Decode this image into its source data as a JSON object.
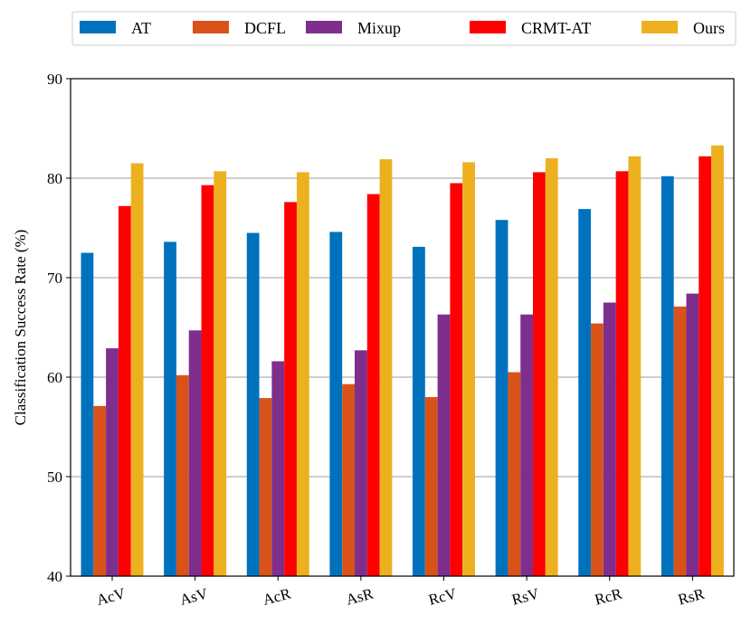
{
  "chart_data": {
    "type": "bar",
    "title": "",
    "xlabel": "",
    "ylabel": "Classification Success Rate (%)",
    "ylim": [
      40,
      90
    ],
    "yticks": [
      40,
      50,
      60,
      70,
      80,
      90
    ],
    "grid": "y",
    "legend": "top",
    "categories": [
      "AcV",
      "AsV",
      "AcR",
      "AsR",
      "RcV",
      "RsV",
      "RcR",
      "RsR"
    ],
    "series": [
      {
        "name": "AT",
        "color": "#0072BD",
        "values": [
          72.5,
          73.6,
          74.5,
          74.6,
          73.1,
          75.8,
          76.9,
          80.2
        ]
      },
      {
        "name": "DCFL",
        "color": "#D95319",
        "values": [
          57.1,
          60.2,
          57.9,
          59.3,
          58.0,
          60.5,
          65.4,
          67.1
        ]
      },
      {
        "name": "Mixup",
        "color": "#7E2F8E",
        "values": [
          62.9,
          64.7,
          61.6,
          62.7,
          66.3,
          66.3,
          67.5,
          68.4
        ]
      },
      {
        "name": "CRMT-AT",
        "color": "#FF0000",
        "values": [
          77.2,
          79.3,
          77.6,
          78.4,
          79.5,
          80.6,
          80.7,
          82.2
        ]
      },
      {
        "name": "Ours",
        "color": "#EDB120",
        "values": [
          81.5,
          80.7,
          80.6,
          81.9,
          81.6,
          82.0,
          82.2,
          83.3
        ]
      }
    ]
  }
}
